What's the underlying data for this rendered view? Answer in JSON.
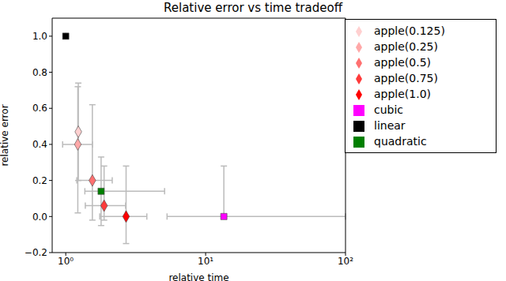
{
  "chart_data": {
    "type": "scatter",
    "title": "Relative error vs time tradeoff",
    "x_label": "relative time",
    "y_label": "relative error",
    "log": "x",
    "grid": false,
    "legend": "upper right",
    "xlim": [
      0.8,
      100
    ],
    "xticks": [
      {
        "value": 1,
        "label": "10⁰"
      },
      {
        "value": 10,
        "label": "10¹"
      },
      {
        "value": 100,
        "label": "10²"
      }
    ],
    "ylim": [
      -0.2,
      1.1
    ],
    "yticks": [
      {
        "value": -0.2,
        "label": "−0.2"
      },
      {
        "value": 0,
        "label": "0.0"
      },
      {
        "value": 0.2,
        "label": "0.2"
      },
      {
        "value": 0.4,
        "label": "0.4"
      },
      {
        "value": 0.6,
        "label": "0.6"
      },
      {
        "value": 0.8,
        "label": "0.8"
      },
      {
        "value": 1.0,
        "label": "1.0"
      }
    ],
    "series": [
      {
        "name": "linear",
        "color": "#000000",
        "marker": "square",
        "x": [
          1.0
        ],
        "values": [
          1.0
        ],
        "x_err": [
          [
            0,
            0
          ]
        ],
        "y_err": [
          [
            0,
            0
          ]
        ]
      },
      {
        "name": "quadratic",
        "color": "#008000",
        "marker": "square",
        "x": [
          1.79
        ],
        "values": [
          0.14
        ],
        "x_err": [
          [
            0.42,
            3.3
          ]
        ],
        "y_err": [
          [
            0.19,
            0.19
          ]
        ]
      },
      {
        "name": "cubic",
        "color": "#ff00ff",
        "marker": "square",
        "x": [
          13.5
        ],
        "values": [
          0.0
        ],
        "x_err": [
          [
            8.2,
            86.5
          ]
        ],
        "y_err": [
          [
            0,
            0.28
          ]
        ]
      },
      {
        "name": "apple(0.125)",
        "color": "#ffd0d0",
        "marker": "diamond",
        "x": [
          1.23
        ],
        "values": [
          0.47
        ],
        "x_err": [
          [
            0.02,
            0.02
          ]
        ],
        "y_err": [
          [
            0.27,
            0.27
          ]
        ]
      },
      {
        "name": "apple(0.25)",
        "color": "#ffa8a8",
        "marker": "diamond",
        "x": [
          1.22
        ],
        "values": [
          0.4
        ],
        "x_err": [
          [
            0.27,
            0.33
          ]
        ],
        "y_err": [
          [
            0.38,
            0.32
          ]
        ]
      },
      {
        "name": "apple(0.5)",
        "color": "#ff7070",
        "marker": "diamond",
        "x": [
          1.55
        ],
        "values": [
          0.2
        ],
        "x_err": [
          [
            0.35,
            0.6
          ]
        ],
        "y_err": [
          [
            0.22,
            0.42
          ]
        ]
      },
      {
        "name": "apple(0.75)",
        "color": "#ff3a3a",
        "marker": "diamond",
        "x": [
          1.88
        ],
        "values": [
          0.06
        ],
        "x_err": [
          [
            0.5,
            0.8
          ]
        ],
        "y_err": [
          [
            0.08,
            0.22
          ]
        ]
      },
      {
        "name": "apple(1.0)",
        "color": "#ff0000",
        "marker": "diamond",
        "x": [
          2.7
        ],
        "values": [
          0.0
        ],
        "x_err": [
          [
            0.95,
            1.1
          ]
        ],
        "y_err": [
          [
            0.15,
            0.28
          ]
        ]
      }
    ]
  }
}
